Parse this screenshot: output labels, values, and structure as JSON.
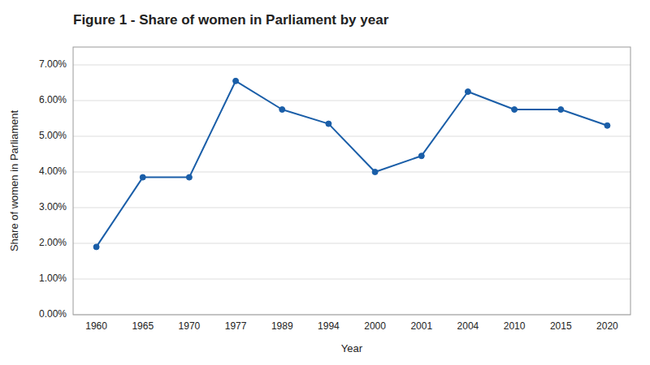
{
  "chart_data": {
    "type": "line",
    "title": "Figure 1 - Share of women in Parliament by year",
    "x_label": "Year",
    "y_label": "Share of women in Parliament",
    "categories": [
      "1960",
      "1965",
      "1970",
      "1977",
      "1989",
      "1994",
      "2000",
      "2001",
      "2004",
      "2010",
      "2015",
      "2020"
    ],
    "values": [
      0.019,
      0.0385,
      0.0385,
      0.0655,
      0.0575,
      0.0535,
      0.04,
      0.0445,
      0.0625,
      0.0575,
      0.0575,
      0.053
    ],
    "color": "#1a5ea8",
    "marker": "circle",
    "ylim": [
      0.0,
      0.075
    ],
    "yticks": [
      {
        "value": 0.0,
        "label": "0.00%"
      },
      {
        "value": 0.01,
        "label": "1.00%"
      },
      {
        "value": 0.02,
        "label": "2.00%"
      },
      {
        "value": 0.03,
        "label": "3.00%"
      },
      {
        "value": 0.04,
        "label": "4.00%"
      },
      {
        "value": 0.05,
        "label": "5.00%"
      },
      {
        "value": 0.06,
        "label": "6.00%"
      },
      {
        "value": 0.07,
        "label": "7.00%"
      }
    ],
    "grid": true
  }
}
